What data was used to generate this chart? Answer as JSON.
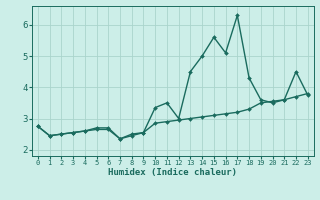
{
  "xlabel": "Humidex (Indice chaleur)",
  "bg_color": "#cceee8",
  "line_color": "#1a6b5e",
  "grid_color": "#aad4cc",
  "text_color": "#1a6b5e",
  "xlim": [
    -0.5,
    23.5
  ],
  "ylim": [
    1.8,
    6.6
  ],
  "yticks": [
    2,
    3,
    4,
    5,
    6
  ],
  "xticks": [
    0,
    1,
    2,
    3,
    4,
    5,
    6,
    7,
    8,
    9,
    10,
    11,
    12,
    13,
    14,
    15,
    16,
    17,
    18,
    19,
    20,
    21,
    22,
    23
  ],
  "x": [
    0,
    1,
    2,
    3,
    4,
    5,
    6,
    7,
    8,
    9,
    10,
    11,
    12,
    13,
    14,
    15,
    16,
    17,
    18,
    19,
    20,
    21,
    22,
    23
  ],
  "y_main": [
    2.75,
    2.45,
    2.5,
    2.55,
    2.6,
    2.7,
    2.7,
    2.35,
    2.5,
    2.55,
    3.35,
    3.5,
    3.0,
    4.5,
    5.0,
    5.6,
    5.1,
    6.3,
    4.3,
    3.6,
    3.5,
    3.6,
    4.5,
    3.75
  ],
  "y_trend": [
    2.75,
    2.45,
    2.5,
    2.55,
    2.6,
    2.65,
    2.65,
    2.35,
    2.45,
    2.55,
    2.85,
    2.9,
    2.95,
    3.0,
    3.05,
    3.1,
    3.15,
    3.2,
    3.3,
    3.5,
    3.55,
    3.6,
    3.7,
    3.8
  ],
  "markersize": 2.0,
  "linewidth": 1.0
}
